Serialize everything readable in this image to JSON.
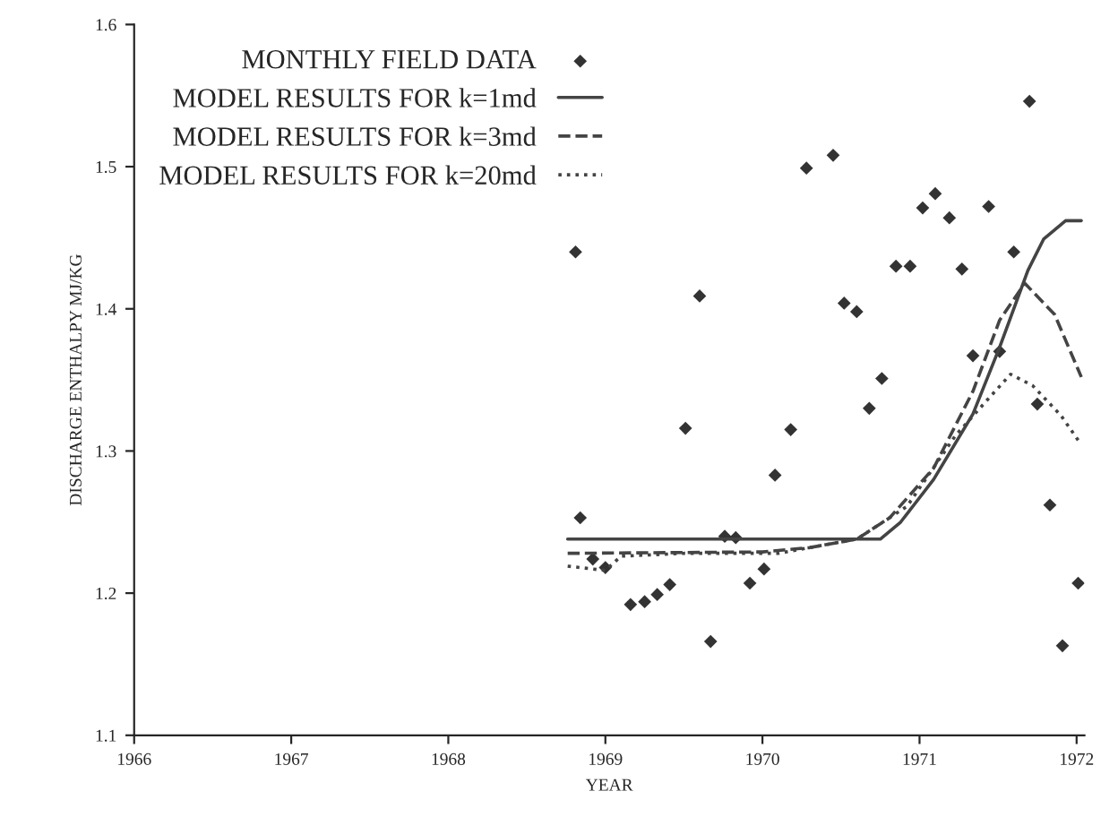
{
  "chart_data": {
    "type": "scatter",
    "xlabel": "YEAR",
    "ylabel": "DISCHARGE ENTHALPY MJ/KG",
    "xlim": [
      1966,
      1972.05
    ],
    "xticks": [
      1966,
      1967,
      1968,
      1969,
      1970,
      1971,
      1972
    ],
    "ylim": [
      1.1,
      1.6
    ],
    "yticks": [
      1.1,
      1.2,
      1.3,
      1.4,
      1.5,
      1.6
    ],
    "legend": "top left",
    "grid": false,
    "series": [
      {
        "name": "MONTHLY FIELD DATA",
        "marker": "diamond",
        "color": "#333333",
        "x": [
          1968.84,
          1968.92,
          1969.0,
          1969.16,
          1969.25,
          1969.33,
          1969.41,
          1969.51,
          1969.6,
          1969.67,
          1969.76,
          1969.83,
          1969.92,
          1970.01,
          1970.08,
          1970.18,
          1970.28,
          1970.45,
          1970.52,
          1970.6,
          1970.68,
          1970.76,
          1970.85,
          1970.94,
          1971.02,
          1971.1,
          1971.19,
          1971.27,
          1971.34,
          1971.44,
          1971.51,
          1971.6,
          1971.7,
          1971.75,
          1971.83,
          1971.91,
          1972.01,
          1968.81
        ],
        "values": [
          1.253,
          1.224,
          1.218,
          1.192,
          1.194,
          1.199,
          1.206,
          1.316,
          1.409,
          1.166,
          1.24,
          1.239,
          1.207,
          1.217,
          1.283,
          1.315,
          1.499,
          1.508,
          1.404,
          1.398,
          1.33,
          1.351,
          1.43,
          1.43,
          1.471,
          1.481,
          1.464,
          1.428,
          1.367,
          1.472,
          1.37,
          1.44,
          1.546,
          1.333,
          1.262,
          1.163,
          1.207,
          1.44
        ]
      },
      {
        "name": "MODEL RESULTS FOR k=1md",
        "type": "line",
        "line_style": "solid",
        "color": "#444444",
        "x": [
          1968.76,
          1970.2,
          1970.75,
          1970.88,
          1971.09,
          1971.34,
          1971.51,
          1971.69,
          1971.79,
          1971.93,
          1972.03
        ],
        "values": [
          1.238,
          1.238,
          1.238,
          1.25,
          1.28,
          1.326,
          1.373,
          1.427,
          1.449,
          1.462,
          1.462
        ]
      },
      {
        "name": "MODEL RESULTS FOR k=3md",
        "type": "line",
        "line_style": "dashed",
        "color": "#444444",
        "x": [
          1968.76,
          1970.0,
          1970.3,
          1970.6,
          1970.81,
          1971.09,
          1971.34,
          1971.51,
          1971.67,
          1971.86,
          1972.03
        ],
        "values": [
          1.228,
          1.229,
          1.232,
          1.238,
          1.253,
          1.288,
          1.342,
          1.392,
          1.418,
          1.396,
          1.352
        ]
      },
      {
        "name": "MODEL RESULTS FOR k=20md",
        "type": "line",
        "line_style": "dotted",
        "color": "#444444",
        "x": [
          1968.76,
          1969.0,
          1969.1,
          1969.5,
          1970.1,
          1970.6,
          1970.92,
          1971.23,
          1971.44,
          1971.58,
          1971.72,
          1971.9,
          1972.02
        ],
        "values": [
          1.219,
          1.216,
          1.226,
          1.228,
          1.228,
          1.238,
          1.261,
          1.311,
          1.337,
          1.354,
          1.346,
          1.325,
          1.306
        ]
      }
    ]
  }
}
